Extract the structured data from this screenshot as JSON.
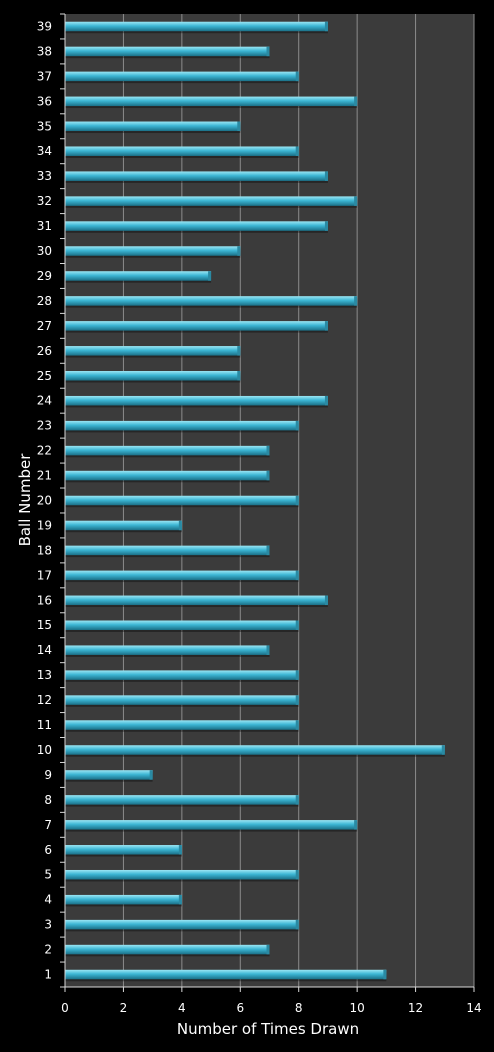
{
  "chart_data": {
    "type": "bar",
    "orientation": "horizontal",
    "title": "",
    "xlabel": "Number of Times Drawn",
    "ylabel": "Ball Number",
    "xlim": [
      0,
      14
    ],
    "x_ticks": [
      0,
      2,
      4,
      6,
      8,
      10,
      12,
      14
    ],
    "grid": true,
    "categories": [
      "1",
      "2",
      "3",
      "4",
      "5",
      "6",
      "7",
      "8",
      "9",
      "10",
      "11",
      "12",
      "13",
      "14",
      "15",
      "16",
      "17",
      "18",
      "19",
      "20",
      "21",
      "22",
      "23",
      "24",
      "25",
      "26",
      "27",
      "28",
      "29",
      "30",
      "31",
      "32",
      "33",
      "34",
      "35",
      "36",
      "37",
      "38",
      "39"
    ],
    "values": [
      11,
      7,
      8,
      4,
      8,
      4,
      10,
      8,
      3,
      13,
      8,
      8,
      8,
      7,
      8,
      9,
      8,
      7,
      4,
      8,
      7,
      7,
      8,
      9,
      6,
      6,
      9,
      10,
      5,
      6,
      9,
      10,
      9,
      8,
      6,
      10,
      8,
      7,
      9
    ],
    "colors": {
      "background": "#000000",
      "plot_area": "#3b3b3b",
      "gridline": "#8c8c8c",
      "bar_light": "#8fe0f0",
      "bar_mid": "#38b2d0",
      "bar_dark": "#1a6f86",
      "text": "#ffffff"
    }
  }
}
